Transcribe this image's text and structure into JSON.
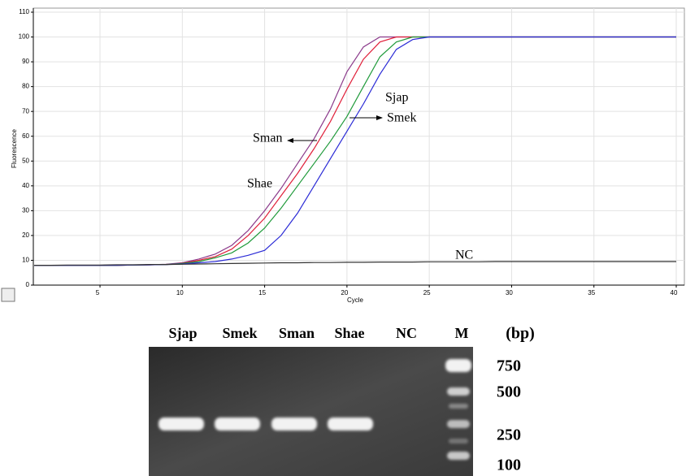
{
  "chart_data": {
    "type": "line",
    "x_label": "Cycle",
    "y_label": "Fluorescence",
    "x": [
      1,
      2,
      3,
      4,
      5,
      6,
      7,
      8,
      9,
      10,
      11,
      12,
      13,
      14,
      15,
      16,
      17,
      18,
      19,
      20,
      21,
      22,
      23,
      24,
      25,
      26,
      27,
      28,
      29,
      30,
      31,
      32,
      33,
      34,
      35,
      36,
      37,
      38,
      39,
      40
    ],
    "series": [
      {
        "name": "Shae",
        "color": "#8b3a8b",
        "values": [
          8,
          8,
          8,
          8,
          8,
          8,
          8.1,
          8.2,
          8.4,
          9,
          10.5,
          12.5,
          16,
          22,
          30,
          39,
          49,
          59,
          71,
          86,
          96,
          100,
          100,
          100,
          100,
          100,
          100,
          100,
          100,
          100,
          100,
          100,
          100,
          100,
          100,
          100,
          100,
          100,
          100,
          100
        ]
      },
      {
        "name": "Sman",
        "color": "#e0203a",
        "values": [
          8,
          8,
          8,
          8,
          8,
          8,
          8.1,
          8.2,
          8.3,
          8.8,
          10,
          11.5,
          14.5,
          20,
          27,
          36,
          45,
          55,
          66,
          79,
          91,
          98,
          100,
          100,
          100,
          100,
          100,
          100,
          100,
          100,
          100,
          100,
          100,
          100,
          100,
          100,
          100,
          100,
          100,
          100
        ]
      },
      {
        "name": "Smek",
        "color": "#1f9a3a",
        "values": [
          8,
          8,
          8,
          8,
          8,
          8,
          8.1,
          8.2,
          8.3,
          8.7,
          9.5,
          11,
          13,
          17,
          23,
          31,
          40,
          49,
          58,
          68,
          80,
          92,
          98,
          100,
          100,
          100,
          100,
          100,
          100,
          100,
          100,
          100,
          100,
          100,
          100,
          100,
          100,
          100,
          100,
          100
        ]
      },
      {
        "name": "Sjap",
        "color": "#2b2bd6",
        "values": [
          8,
          8,
          8,
          8,
          8,
          8,
          8.1,
          8.2,
          8.3,
          8.5,
          9,
          9.5,
          10.5,
          12,
          14,
          20,
          29,
          40,
          51,
          62,
          73,
          85,
          95,
          99,
          100,
          100,
          100,
          100,
          100,
          100,
          100,
          100,
          100,
          100,
          100,
          100,
          100,
          100,
          100,
          100
        ]
      },
      {
        "name": "NC",
        "color": "#333333",
        "values": [
          8,
          8,
          8.1,
          8.1,
          8.1,
          8.2,
          8.2,
          8.3,
          8.3,
          8.4,
          8.5,
          8.6,
          8.7,
          8.8,
          8.9,
          9,
          9,
          9.1,
          9.1,
          9.2,
          9.2,
          9.3,
          9.3,
          9.3,
          9.4,
          9.4,
          9.4,
          9.4,
          9.5,
          9.5,
          9.5,
          9.5,
          9.5,
          9.5,
          9.5,
          9.5,
          9.5,
          9.5,
          9.5,
          9.5
        ]
      }
    ],
    "xlim": [
      1,
      40
    ],
    "ylim": [
      0,
      110
    ],
    "xticks": [
      5,
      10,
      15,
      20,
      25,
      30,
      35,
      40
    ],
    "yticks": [
      0,
      10,
      20,
      30,
      40,
      50,
      60,
      70,
      80,
      90,
      100,
      110
    ],
    "grid": true
  },
  "gel": {
    "lanes": [
      "Sjap",
      "Smek",
      "Sman",
      "Shae",
      "NC",
      "M"
    ],
    "unit": "(bp)",
    "marker_sizes": [
      "750",
      "500",
      "250",
      "100"
    ]
  }
}
